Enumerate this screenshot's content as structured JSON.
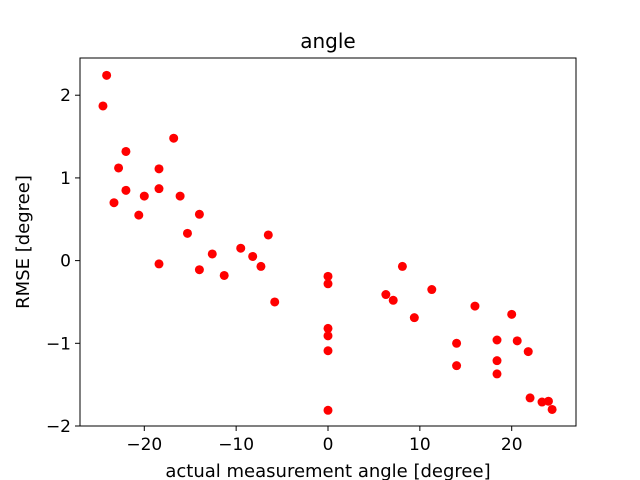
{
  "chart_data": {
    "type": "scatter",
    "title": "angle",
    "xlabel": "actual measurement angle [degree]",
    "ylabel": "RMSE [degree]",
    "xlim": [
      -27,
      27
    ],
    "ylim": [
      -2.0,
      2.45
    ],
    "xticks": [
      -20,
      -10,
      0,
      10,
      20
    ],
    "yticks": [
      -2,
      -1,
      0,
      1,
      2
    ],
    "tick_labels_x": [
      "−20",
      "−10",
      "0",
      "10",
      "20"
    ],
    "tick_labels_y": [
      "−2",
      "−1",
      "0",
      "1",
      "2"
    ],
    "grid": false,
    "legend": "none",
    "marker_color": "#ff0000",
    "series": [
      {
        "points": [
          [
            -24.5,
            1.87
          ],
          [
            -24.1,
            2.24
          ],
          [
            -23.3,
            0.7
          ],
          [
            -22.8,
            1.12
          ],
          [
            -22.0,
            1.32
          ],
          [
            -22.0,
            0.85
          ],
          [
            -20.6,
            0.55
          ],
          [
            -20.0,
            0.78
          ],
          [
            -18.4,
            1.11
          ],
          [
            -18.4,
            0.87
          ],
          [
            -18.4,
            -0.04
          ],
          [
            -16.8,
            1.48
          ],
          [
            -16.1,
            0.78
          ],
          [
            -15.3,
            0.33
          ],
          [
            -14.0,
            0.56
          ],
          [
            -14.0,
            -0.11
          ],
          [
            -12.6,
            0.08
          ],
          [
            -11.3,
            -0.18
          ],
          [
            -9.5,
            0.15
          ],
          [
            -8.2,
            0.05
          ],
          [
            -7.3,
            -0.07
          ],
          [
            -6.5,
            0.31
          ],
          [
            -5.8,
            -0.5
          ],
          [
            0.0,
            -0.19
          ],
          [
            0.0,
            -0.28
          ],
          [
            0.0,
            -0.82
          ],
          [
            0.0,
            -0.91
          ],
          [
            0.0,
            -1.09
          ],
          [
            0.0,
            -1.81
          ],
          [
            6.3,
            -0.41
          ],
          [
            7.1,
            -0.48
          ],
          [
            8.1,
            -0.07
          ],
          [
            9.4,
            -0.69
          ],
          [
            11.3,
            -0.35
          ],
          [
            14.0,
            -1.0
          ],
          [
            14.0,
            -1.27
          ],
          [
            16.0,
            -0.55
          ],
          [
            18.4,
            -0.96
          ],
          [
            18.4,
            -1.21
          ],
          [
            18.4,
            -1.37
          ],
          [
            20.0,
            -0.65
          ],
          [
            20.6,
            -0.97
          ],
          [
            21.8,
            -1.1
          ],
          [
            22.0,
            -1.66
          ],
          [
            23.3,
            -1.71
          ],
          [
            24.0,
            -1.7
          ],
          [
            24.4,
            -1.8
          ]
        ]
      }
    ]
  }
}
